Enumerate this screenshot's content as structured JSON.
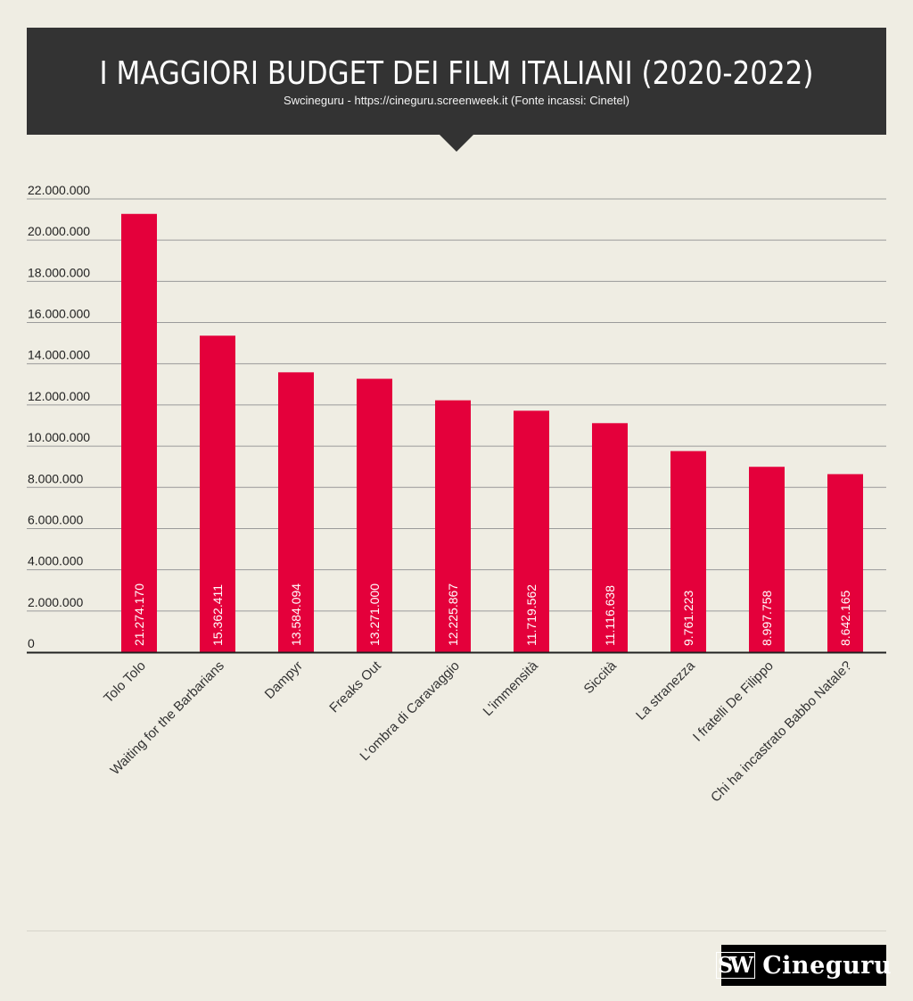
{
  "header": {
    "title": "I MAGGIORI BUDGET DEI FILM ITALIANI (2020-2022)",
    "subtitle": "Swcineguru - https://cineguru.screenweek.it (Fonte incassi: Cinetel)"
  },
  "logo": {
    "mark": "SW",
    "text": "Cineguru"
  },
  "colors": {
    "bar": "#e4003b",
    "header": "#333333",
    "background": "#efede3"
  },
  "chart_data": {
    "type": "bar",
    "title": "I MAGGIORI BUDGET DEI FILM ITALIANI (2020-2022)",
    "xlabel": "",
    "ylabel": "",
    "ylim": [
      0,
      22000000
    ],
    "grid": true,
    "yticks": [
      "0",
      "2.000.000",
      "4.000.000",
      "6.000.000",
      "8.000.000",
      "10.000.000",
      "12.000.000",
      "14.000.000",
      "16.000.000",
      "18.000.000",
      "20.000.000",
      "22.000.000"
    ],
    "categories": [
      "Tolo Tolo",
      "Waiting for the Barbarians",
      "Dampyr",
      "Freaks Out",
      "L'ombra di Caravaggio",
      "L'immensità",
      "Siccità",
      "La stranezza",
      "I fratelli De Filippo",
      "Chi ha incastrato Babbo Natale?"
    ],
    "values": [
      21274170,
      15362411,
      13584094,
      13271000,
      12225867,
      11719562,
      11116638,
      9761223,
      8997758,
      8642165
    ],
    "value_labels": [
      "21.274.170",
      "15.362.411",
      "13.584.094",
      "13.271.000",
      "12.225.867",
      "11.719.562",
      "11.116.638",
      "9.761.223",
      "8.997.758",
      "8.642.165"
    ]
  }
}
